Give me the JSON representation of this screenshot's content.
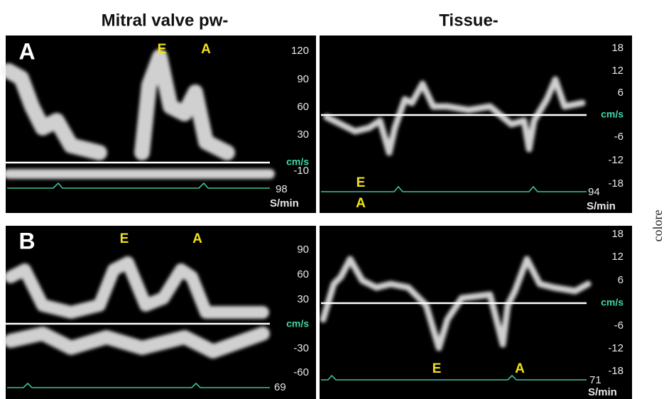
{
  "header": {
    "left_title": "Mitral valve pw-",
    "right_title": "Tissue-"
  },
  "side_text": "colore",
  "panels": [
    {
      "label": "A",
      "left": {
        "markers": [
          "E",
          "A"
        ],
        "scale": [
          "120",
          "90",
          "60",
          "30",
          "cm/s",
          "-10"
        ],
        "heart_rate": "98",
        "rate_unit": "S/min"
      },
      "right": {
        "markers": [
          "E",
          "A"
        ],
        "scale": [
          "18",
          "12",
          "6",
          "cm/s",
          "-6",
          "-12",
          "-18"
        ],
        "heart_rate": "94",
        "rate_unit": "S/min"
      }
    },
    {
      "label": "B",
      "left": {
        "markers": [
          "E",
          "A"
        ],
        "scale": [
          "90",
          "60",
          "30",
          "cm/s",
          "-30",
          "-60"
        ],
        "heart_rate": "69"
      },
      "right": {
        "markers": [
          "E",
          "A"
        ],
        "scale": [
          "18",
          "12",
          "6",
          "cm/s",
          "-6",
          "-12",
          "-18"
        ],
        "heart_rate": "71",
        "rate_unit": "S/min"
      }
    }
  ]
}
